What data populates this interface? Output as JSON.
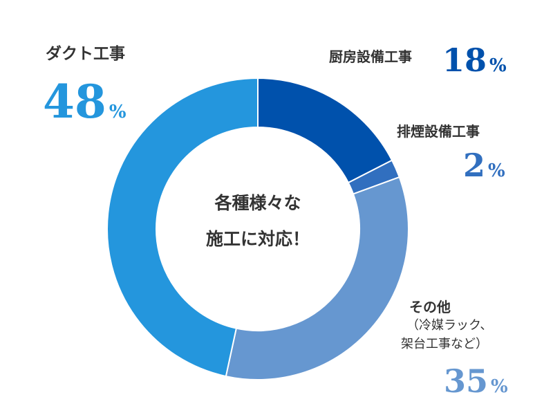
{
  "center": {
    "line1": "各種様々な",
    "line2": "施工に対応！"
  },
  "chart_data": {
    "type": "pie",
    "style": "donut",
    "start_angle_deg": 0,
    "slices": [
      {
        "label": "厨房設備工事",
        "value": 18,
        "display": "18",
        "unit": "%",
        "color": "#0051AC"
      },
      {
        "label": "排煙設備工事",
        "value": 2,
        "display": "2",
        "unit": "%",
        "color": "#316FBF"
      },
      {
        "label": "その他",
        "note_line1": "（冷媒ラック、",
        "note_line2": "架台工事など）",
        "value": 35,
        "display": "35",
        "unit": "%",
        "color": "#6697D0"
      },
      {
        "label": "ダクト工事",
        "value": 48,
        "display": "48",
        "unit": "%",
        "color": "#2496DD"
      }
    ]
  }
}
